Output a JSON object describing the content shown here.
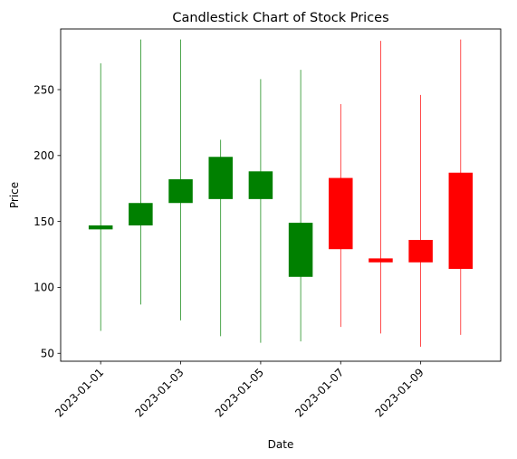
{
  "chart_data": {
    "type": "candlestick",
    "title": "Candlestick Chart of Stock Prices",
    "xlabel": "Date",
    "ylabel": "Price",
    "ylim": [
      44,
      296
    ],
    "xlim": [
      "2022-12-31",
      "2023-01-11"
    ],
    "grid": false,
    "x_tick_labels": [
      "2023-01-01",
      "2023-01-03",
      "2023-01-05",
      "2023-01-07",
      "2023-01-09"
    ],
    "y_ticks": [
      50,
      100,
      150,
      200,
      250
    ],
    "colors": {
      "up": "#008000",
      "down": "#ff0000"
    },
    "candles": [
      {
        "date": "2023-01-01",
        "open": 144,
        "high": 270,
        "low": 67,
        "close": 147
      },
      {
        "date": "2023-01-02",
        "open": 147,
        "high": 288,
        "low": 87,
        "close": 164
      },
      {
        "date": "2023-01-03",
        "open": 164,
        "high": 288,
        "low": 75,
        "close": 182
      },
      {
        "date": "2023-01-04",
        "open": 167,
        "high": 212,
        "low": 63,
        "close": 199
      },
      {
        "date": "2023-01-05",
        "open": 167,
        "high": 258,
        "low": 58,
        "close": 188
      },
      {
        "date": "2023-01-06",
        "open": 108,
        "high": 265,
        "low": 59,
        "close": 149
      },
      {
        "date": "2023-01-07",
        "open": 183,
        "high": 239,
        "low": 70,
        "close": 129
      },
      {
        "date": "2023-01-08",
        "open": 122,
        "high": 287,
        "low": 65,
        "close": 119
      },
      {
        "date": "2023-01-09",
        "open": 136,
        "high": 246,
        "low": 55,
        "close": 119
      },
      {
        "date": "2023-01-10",
        "open": 187,
        "high": 288,
        "low": 64,
        "close": 114
      }
    ]
  }
}
